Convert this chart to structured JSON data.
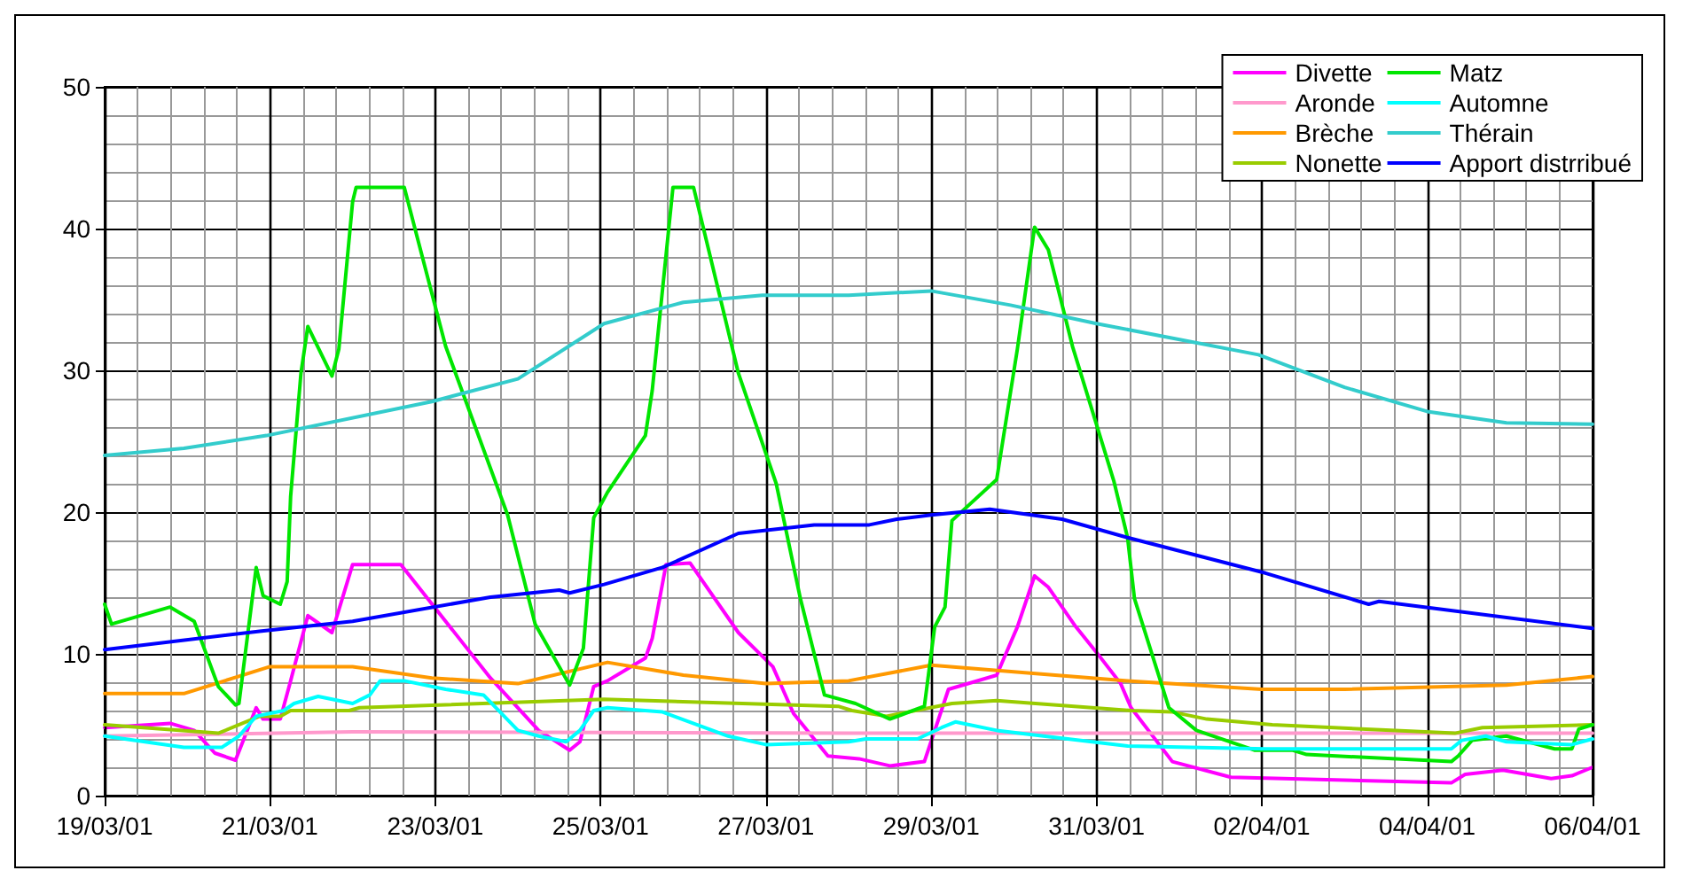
{
  "chart_data": {
    "type": "line",
    "xlim": [
      "--03-19",
      "--04-06"
    ],
    "ylim": [
      0,
      50
    ],
    "yticks": [
      0,
      10,
      20,
      30,
      40,
      50
    ],
    "xticks": [
      {
        "value": "--03-19",
        "label": "19/03/01"
      },
      {
        "value": "--03-21",
        "label": "21/03/01"
      },
      {
        "value": "--03-23",
        "label": "23/03/01"
      },
      {
        "value": "--03-25",
        "label": "25/03/01"
      },
      {
        "value": "--03-27",
        "label": "27/03/01"
      },
      {
        "value": "--03-29",
        "label": "29/03/01"
      },
      {
        "value": "--03-31",
        "label": "31/03/01"
      },
      {
        "value": "--04-02",
        "label": "02/04/01"
      },
      {
        "value": "--04-04",
        "label": "04/04/01"
      },
      {
        "value": "--04-06",
        "label": "06/04/01"
      }
    ],
    "grid": true,
    "legend": "top right",
    "marker": "none",
    "line_style": "solid",
    "series": [
      {
        "name": "Divette",
        "color": "#ff00ff",
        "x": [
          "--03-19T00:00",
          "--03-19T19:00",
          "--03-20T02:00",
          "--03-20T08:00",
          "--03-20T14:00",
          "--03-20T20:00",
          "--03-20T22:00",
          "--03-21T03:00",
          "--03-21T06:00",
          "--03-21T11:00",
          "--03-21T18:00",
          "--03-22T00:00",
          "--03-22T14:00",
          "--03-23T03:00",
          "--03-23T16:00",
          "--03-24T06:00",
          "--03-24T15:00",
          "--03-24T18:00",
          "--03-24T22:00",
          "--03-25T02:00",
          "--03-25T13:00",
          "--03-25T15:00",
          "--03-25T19:00",
          "--03-26T02:00",
          "--03-26T16:00",
          "--03-27T02:00",
          "--03-27T08:00",
          "--03-27T18:00",
          "--03-28T03:00",
          "--03-28T12:00",
          "--03-28T22:00",
          "--03-29T05:00",
          "--03-29T19:00",
          "--03-30T01:00",
          "--03-30T06:00",
          "--03-30T10:00",
          "--03-30T18:00",
          "--03-31T00:00",
          "--03-31T07:00",
          "--03-31T10:00",
          "--03-31T22:00",
          "--04-01T15:00",
          "--04-04T07:00",
          "--04-04T11:00",
          "--04-04T22:00",
          "--04-05T12:00",
          "--04-05T18:00",
          "--04-06T00:00"
        ],
        "values": [
          4.8,
          5.1,
          4.6,
          3.0,
          2.5,
          6.2,
          5.4,
          5.4,
          8.1,
          12.7,
          11.5,
          16.3,
          16.3,
          12.3,
          8.3,
          4.6,
          3.2,
          3.8,
          7.7,
          8.1,
          9.7,
          11.1,
          16.3,
          16.4,
          11.5,
          9.1,
          5.8,
          2.8,
          2.6,
          2.1,
          2.4,
          7.5,
          8.5,
          11.9,
          15.5,
          14.7,
          11.9,
          10.1,
          7.9,
          6.2,
          2.4,
          1.3,
          0.9,
          1.5,
          1.8,
          1.2,
          1.4,
          2.0
        ]
      },
      {
        "name": "Aronde",
        "color": "#ff99cc",
        "x": [
          "--03-19T00:00",
          "--03-22T00:00",
          "--03-28T00:00",
          "--04-06T00:00"
        ],
        "values": [
          4.2,
          4.5,
          4.4,
          4.4
        ]
      },
      {
        "name": "Brèche",
        "color": "#ff9900",
        "x": [
          "--03-19T00:00",
          "--03-19T23:00",
          "--03-21T00:00",
          "--03-22T00:00",
          "--03-22T23:00",
          "--03-24T00:00",
          "--03-25T02:00",
          "--03-26T00:00",
          "--03-27T00:00",
          "--03-28T00:00",
          "--03-29T00:00",
          "--03-30T12:00",
          "--03-31T09:00",
          "--04-02T00:00",
          "--04-03T00:00",
          "--04-04T23:00",
          "--04-06T00:00"
        ],
        "values": [
          7.2,
          7.2,
          9.1,
          9.1,
          8.3,
          7.9,
          9.4,
          8.5,
          7.9,
          8.1,
          9.2,
          8.5,
          8.1,
          7.5,
          7.5,
          7.8,
          8.4
        ]
      },
      {
        "name": "Nonette",
        "color": "#99cc00",
        "x": [
          "--03-19T00:00",
          "--03-20T09:00",
          "--03-20T21:00",
          "--03-21T03:00",
          "--03-21T06:00",
          "--03-21T23:00",
          "--03-22T02:00",
          "--03-25T01:00",
          "--03-27T21:00",
          "--03-28T01:00",
          "--03-28T11:00",
          "--03-29T06:00",
          "--03-29T19:00",
          "--03-31T10:00",
          "--03-31T22:00",
          "--04-01T08:00",
          "--04-02T03:00",
          "--04-04T08:00",
          "--04-04T16:00",
          "--04-06T00:00"
        ],
        "values": [
          5.0,
          4.4,
          5.6,
          5.6,
          6.0,
          6.0,
          6.2,
          6.8,
          6.3,
          6.0,
          5.6,
          6.5,
          6.7,
          6.0,
          5.9,
          5.4,
          5.0,
          4.4,
          4.8,
          5.0
        ]
      },
      {
        "name": "Matz",
        "color": "#00e600",
        "x": [
          "--03-19T00:00",
          "--03-19T02:00",
          "--03-19T19:00",
          "--03-20T02:00",
          "--03-20T09:00",
          "--03-20T14:00",
          "--03-20T15:00",
          "--03-20T20:00",
          "--03-20T22:00",
          "--03-21T03:00",
          "--03-21T05:00",
          "--03-21T06:00",
          "--03-21T09:00",
          "--03-21T11:00",
          "--03-21T18:00",
          "--03-21T20:00",
          "--03-22T00:00",
          "--03-22T01:00",
          "--03-22T15:00",
          "--03-22T18:00",
          "--03-23T03:00",
          "--03-23T21:00",
          "--03-24T05:00",
          "--03-24T15:00",
          "--03-24T19:00",
          "--03-24T22:00",
          "--03-25T02:00",
          "--03-25T13:00",
          "--03-25T15:00",
          "--03-25T21:00",
          "--03-26T03:00",
          "--03-26T16:00",
          "--03-27T03:00",
          "--03-27T10:00",
          "--03-27T17:00",
          "--03-28T02:00",
          "--03-28T12:00",
          "--03-28T22:00",
          "--03-29T01:00",
          "--03-29T04:00",
          "--03-29T06:00",
          "--03-29T19:00",
          "--03-30T01:00",
          "--03-30T06:00",
          "--03-30T10:00",
          "--03-30T17:00",
          "--03-31T05:00",
          "--03-31T09:00",
          "--03-31T11:00",
          "--03-31T21:00",
          "--04-01T05:00",
          "--04-01T22:00",
          "--04-02T09:00",
          "--04-02T13:00",
          "--04-04T07:00",
          "--04-04T09:00",
          "--04-04T13:00",
          "--04-04T23:00",
          "--04-05T13:00",
          "--04-05T18:00",
          "--04-05T20:00",
          "--04-06T00:00"
        ],
        "values": [
          13.5,
          12.1,
          13.3,
          12.3,
          7.7,
          6.4,
          6.5,
          16.1,
          14.1,
          13.5,
          15.1,
          21.1,
          29.8,
          33.1,
          29.6,
          31.5,
          41.9,
          42.9,
          42.9,
          40.1,
          31.7,
          19.8,
          12.1,
          7.8,
          10.4,
          19.6,
          21.4,
          25.4,
          28.6,
          42.9,
          42.9,
          29.8,
          22.0,
          13.9,
          7.1,
          6.5,
          5.4,
          6.3,
          11.9,
          13.3,
          19.4,
          22.3,
          31.5,
          40.1,
          38.5,
          31.7,
          22.2,
          18.2,
          13.9,
          6.2,
          4.6,
          3.2,
          3.2,
          2.9,
          2.4,
          2.8,
          3.9,
          4.2,
          3.3,
          3.3,
          4.7,
          5.0
        ]
      },
      {
        "name": "Automne",
        "color": "#00ffff",
        "x": [
          "--03-19T00:00",
          "--03-19T23:00",
          "--03-20T10:00",
          "--03-20T15:00",
          "--03-20T20:00",
          "--03-21T04:00",
          "--03-21T07:00",
          "--03-21T14:00",
          "--03-22T00:00",
          "--03-22T05:00",
          "--03-22T08:00",
          "--03-22T15:00",
          "--03-23T03:00",
          "--03-23T14:00",
          "--03-24T00:00",
          "--03-24T06:00",
          "--03-24T14:00",
          "--03-24T18:00",
          "--03-24T22:00",
          "--03-25T02:00",
          "--03-25T18:00",
          "--03-26T13:00",
          "--03-27T00:00",
          "--03-28T00:00",
          "--03-28T05:00",
          "--03-28T20:00",
          "--03-29T03:00",
          "--03-29T07:00",
          "--03-29T19:00",
          "--03-31T09:00",
          "--04-02T01:00",
          "--04-04T07:00",
          "--04-04T10:00",
          "--04-04T17:00",
          "--04-04T23:00",
          "--04-05T18:00",
          "--04-06T00:00"
        ],
        "values": [
          4.2,
          3.4,
          3.4,
          4.2,
          5.6,
          6.0,
          6.5,
          7.0,
          6.5,
          7.1,
          8.1,
          8.1,
          7.5,
          7.1,
          4.6,
          4.2,
          3.8,
          4.6,
          6.0,
          6.2,
          5.9,
          4.2,
          3.6,
          3.8,
          4.0,
          4.0,
          4.8,
          5.2,
          4.6,
          3.5,
          3.3,
          3.3,
          3.9,
          4.2,
          3.8,
          3.6,
          4.0
        ]
      },
      {
        "name": "Thérain",
        "color": "#33cccc",
        "x": [
          "--03-19T00:00",
          "--03-19T23:00",
          "--03-20T23:00",
          "--03-22T23:00",
          "--03-24T00:00",
          "--03-25T01:00",
          "--03-26T00:00",
          "--03-26T23:00",
          "--03-28T00:00",
          "--03-29T00:00",
          "--03-29T23:00",
          "--03-31T00:00",
          "--04-01T23:00",
          "--04-03T00:00",
          "--04-04T00:00",
          "--04-04T23:00",
          "--04-06T00:00"
        ],
        "values": [
          24.0,
          24.5,
          25.4,
          27.8,
          29.4,
          33.3,
          34.8,
          35.3,
          35.3,
          35.6,
          34.6,
          33.3,
          31.1,
          28.8,
          27.1,
          26.3,
          26.2
        ]
      },
      {
        "name": "Apport distrribué",
        "color": "#0000ff",
        "x": [
          "--03-19T00:00",
          "--03-20T21:00",
          "--03-22T00:00",
          "--03-23T16:00",
          "--03-24T12:00",
          "--03-24T15:00",
          "--03-25T01:00",
          "--03-25T18:00",
          "--03-26T16:00",
          "--03-27T14:00",
          "--03-28T06:00",
          "--03-28T14:00",
          "--03-29T00:00",
          "--03-29T17:00",
          "--03-30T14:00",
          "--03-31T09:00",
          "--04-02T01:00",
          "--04-03T07:00",
          "--04-03T10:00",
          "--04-06T00:00"
        ],
        "values": [
          10.3,
          11.6,
          12.3,
          14.0,
          14.5,
          14.3,
          14.9,
          16.1,
          18.5,
          19.1,
          19.1,
          19.5,
          19.8,
          20.2,
          19.5,
          18.2,
          15.7,
          13.5,
          13.7,
          11.8
        ]
      }
    ]
  }
}
